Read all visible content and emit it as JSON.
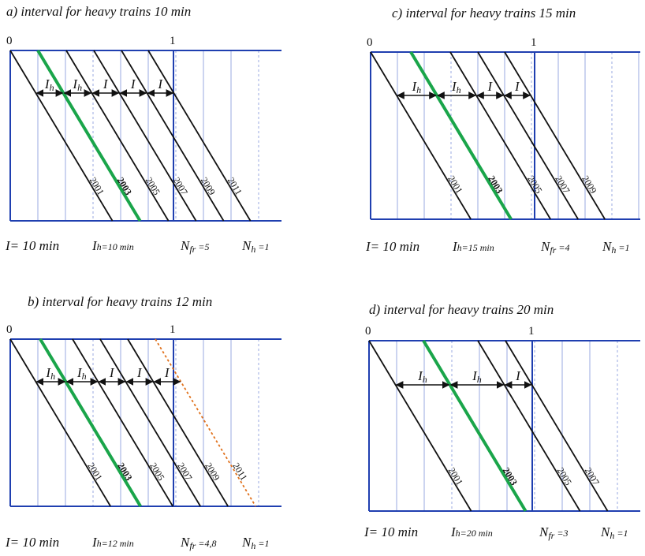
{
  "panels": [
    {
      "id": "a",
      "title": "a) interval for heavy trains 10 min",
      "axis": {
        "start": "0",
        "end": "1"
      },
      "lines": [
        {
          "label": "2001",
          "heavy": false
        },
        {
          "label": "2003",
          "heavy": true
        },
        {
          "label": "2005",
          "heavy": false
        },
        {
          "label": "2007",
          "heavy": false
        },
        {
          "label": "2009",
          "heavy": false
        },
        {
          "label": "2011",
          "heavy": false
        }
      ],
      "extra_dotted": false,
      "arrows": [
        "Ih",
        "Ih",
        "I",
        "I",
        "I"
      ],
      "formula": {
        "I_label": "I",
        "I_value": "= 10 min",
        "Ih_label": "I",
        "Ih_sub": "h",
        "Ih_value": "=10 min",
        "Nfr_label": "N",
        "Nfr_sub": "fr",
        "Nfr_value": "=5",
        "Nh_label": "N",
        "Nh_sub": "h",
        "Nh_value": "=1"
      }
    },
    {
      "id": "b",
      "title": "b) interval for heavy trains 12 min",
      "axis": {
        "start": "0",
        "end": "1"
      },
      "lines": [
        {
          "label": "2001",
          "heavy": false
        },
        {
          "label": "2003",
          "heavy": true
        },
        {
          "label": "2005",
          "heavy": false
        },
        {
          "label": "2007",
          "heavy": false
        },
        {
          "label": "2009",
          "heavy": false
        },
        {
          "label": "2011",
          "heavy": false,
          "dotted": true
        }
      ],
      "extra_dotted": true,
      "arrows": [
        "Ih",
        "Ih",
        "I",
        "I",
        "I"
      ],
      "formula": {
        "I_label": "I",
        "I_value": "= 10 min",
        "Ih_label": "I",
        "Ih_sub": "h",
        "Ih_value": "=12 min",
        "Nfr_label": "N",
        "Nfr_sub": "fr",
        "Nfr_value": "=4,8",
        "Nh_label": "N",
        "Nh_sub": "h",
        "Nh_value": "=1"
      }
    },
    {
      "id": "c",
      "title": "c) interval for heavy trains 15 min",
      "axis": {
        "start": "0",
        "end": "1"
      },
      "lines": [
        {
          "label": "2001",
          "heavy": false
        },
        {
          "label": "2003",
          "heavy": true
        },
        {
          "label": "2005",
          "heavy": false
        },
        {
          "label": "2007",
          "heavy": false
        },
        {
          "label": "2009",
          "heavy": false
        }
      ],
      "extra_dotted": false,
      "arrows": [
        "Ih",
        "Ih",
        "I",
        "I"
      ],
      "formula": {
        "I_label": "I",
        "I_value": "= 10 min",
        "Ih_label": "I",
        "Ih_sub": "h",
        "Ih_value": "=15 min",
        "Nfr_label": "N",
        "Nfr_sub": "fr",
        "Nfr_value": "=4",
        "Nh_label": "N",
        "Nh_sub": "h",
        "Nh_value": "=1"
      }
    },
    {
      "id": "d",
      "title": "d) interval for heavy trains 20 min",
      "axis": {
        "start": "0",
        "end": "1"
      },
      "lines": [
        {
          "label": "2001",
          "heavy": false
        },
        {
          "label": "2003",
          "heavy": true
        },
        {
          "label": "2005",
          "heavy": false
        },
        {
          "label": "2007",
          "heavy": false
        }
      ],
      "extra_dotted": false,
      "arrows": [
        "Ih",
        "Ih",
        "I"
      ],
      "formula": {
        "I_label": "I",
        "I_value": "= 10 min",
        "Ih_label": "I",
        "Ih_sub": "h",
        "Ih_value": "=20 min",
        "Nfr_label": "N",
        "Nfr_sub": "fr",
        "Nfr_value": "=3",
        "Nh_label": "N",
        "Nh_sub": "h",
        "Nh_value": "=1"
      }
    }
  ],
  "colors": {
    "frame": "#1f3fb0",
    "grid": "#9aa9e0",
    "train": "#111111",
    "heavy": "#1aa54a",
    "dotted": "#e0701a"
  }
}
